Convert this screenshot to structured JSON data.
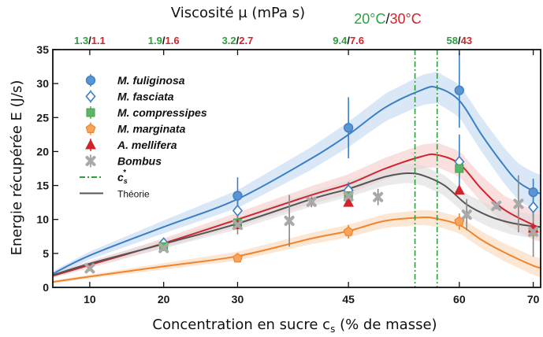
{
  "chart_data": {
    "type": "scatter",
    "title": "",
    "xlabel": "Concentration en sucre c",
    "xlabel_sub": "s",
    "xlabel_unit": " (% de masse)",
    "ylabel": "Energie récupérée E (J/s)",
    "top_axis_label": "Viscosité µ (mPa s)",
    "temperatures": {
      "t20": "20°C",
      "sep": "/",
      "t30": "30°C",
      "color20": "#2e9e3e",
      "color30": "#d0242d"
    },
    "xlim": [
      5,
      71
    ],
    "ylim": [
      0,
      35
    ],
    "x_ticks": [
      10,
      20,
      30,
      45,
      60,
      70
    ],
    "y_ticks": [
      0,
      5,
      10,
      15,
      20,
      25,
      30,
      35
    ],
    "grid": false,
    "legend_position": "top-left",
    "viscosity_ticks": [
      {
        "x": 10,
        "v20": "1.3",
        "v30": "1.1"
      },
      {
        "x": 20,
        "v20": "1.9",
        "v30": "1.6"
      },
      {
        "x": 30,
        "v20": "3.2",
        "v30": "2.7"
      },
      {
        "x": 45,
        "v20": "9.4",
        "v30": "7.6"
      },
      {
        "x": 60,
        "v20": "58",
        "v30": "43"
      }
    ],
    "cs_star_lines": [
      {
        "x": 54,
        "color": "#2e9e3e"
      },
      {
        "x": 57,
        "color": "#2e9e3e"
      }
    ],
    "theory_curves": [
      {
        "name": "",
        "color": "#3a7fc4",
        "band_color": "#b9d3ee",
        "band_halfwidth": [
          0.4,
          2.8
        ],
        "points": [
          [
            5,
            2.0
          ],
          [
            10,
            4.7
          ],
          [
            20,
            8.9
          ],
          [
            30,
            13.0
          ],
          [
            40,
            19.0
          ],
          [
            45,
            22.5
          ],
          [
            50,
            26.5
          ],
          [
            55,
            29.1
          ],
          [
            57,
            29.4
          ],
          [
            60,
            27.5
          ],
          [
            63,
            22.5
          ],
          [
            66,
            18.0
          ],
          [
            68,
            15.5
          ],
          [
            70,
            14.2
          ],
          [
            71,
            13.8
          ]
        ]
      },
      {
        "name": "",
        "color": "#d0242d",
        "band_color": "#f5c5c5",
        "band_halfwidth": [
          0.3,
          2.2
        ],
        "points": [
          [
            5,
            1.7
          ],
          [
            10,
            3.3
          ],
          [
            20,
            6.5
          ],
          [
            30,
            10.0
          ],
          [
            40,
            13.6
          ],
          [
            45,
            15.2
          ],
          [
            50,
            17.5
          ],
          [
            55,
            19.3
          ],
          [
            57,
            19.5
          ],
          [
            60,
            18.2
          ],
          [
            63,
            14.5
          ],
          [
            66,
            11.5
          ],
          [
            70,
            9.2
          ],
          [
            71,
            8.9
          ]
        ]
      },
      {
        "name": "",
        "color": "#555555",
        "band_color": "#d8d8d8",
        "band_halfwidth": [
          0.3,
          1.8
        ],
        "points": [
          [
            5,
            1.8
          ],
          [
            10,
            3.5
          ],
          [
            20,
            6.4
          ],
          [
            30,
            9.4
          ],
          [
            40,
            13.0
          ],
          [
            45,
            14.5
          ],
          [
            50,
            16.3
          ],
          [
            53,
            16.8
          ],
          [
            55,
            16.5
          ],
          [
            58,
            15.0
          ],
          [
            61,
            12.2
          ],
          [
            64,
            10.5
          ],
          [
            67,
            9.5
          ],
          [
            70,
            9.0
          ],
          [
            71,
            8.9
          ]
        ]
      },
      {
        "name": "",
        "color": "#f0842c",
        "band_color": "#f9d4b3",
        "band_halfwidth": [
          0.2,
          1.4
        ],
        "points": [
          [
            5,
            0.8
          ],
          [
            10,
            1.6
          ],
          [
            20,
            3.1
          ],
          [
            30,
            4.6
          ],
          [
            40,
            7.2
          ],
          [
            45,
            8.3
          ],
          [
            50,
            9.8
          ],
          [
            55,
            10.3
          ],
          [
            57,
            10.1
          ],
          [
            60,
            9.2
          ],
          [
            63,
            7.0
          ],
          [
            66,
            5.2
          ],
          [
            70,
            3.2
          ],
          [
            71,
            2.9
          ]
        ]
      }
    ],
    "series": [
      {
        "name": "M. fuliginosa",
        "marker": "circle",
        "color": "#3a7fc4",
        "fill": "#5a94d2",
        "points": [
          {
            "x": 30,
            "y": 13.5,
            "err": 2.7
          },
          {
            "x": 45,
            "y": 23.5,
            "err": 4.5
          },
          {
            "x": 60,
            "y": 29.0,
            "err": 5.5
          },
          {
            "x": 70,
            "y": 14.0,
            "err": 2.0
          }
        ]
      },
      {
        "name": "M. fasciata",
        "marker": "diamond",
        "color": "#3a7fc4",
        "fill": "#ffffff",
        "points": [
          {
            "x": 20,
            "y": 6.5,
            "err": 0.6
          },
          {
            "x": 30,
            "y": 11.3,
            "err": 1.5
          },
          {
            "x": 45,
            "y": 14.3,
            "err": 1.2
          },
          {
            "x": 60,
            "y": 18.5,
            "err": 4.0
          },
          {
            "x": 70,
            "y": 11.8,
            "err": 1.5
          }
        ]
      },
      {
        "name": "M. compressipes",
        "marker": "square",
        "color": "#3fa34d",
        "fill": "#5ab565",
        "points": [
          {
            "x": 20,
            "y": 6.0,
            "err": 0.4
          },
          {
            "x": 30,
            "y": 9.5,
            "err": 0.8
          },
          {
            "x": 45,
            "y": 13.5,
            "err": 0.8
          },
          {
            "x": 60,
            "y": 17.5,
            "err": 1.0
          }
        ]
      },
      {
        "name": "M. marginata",
        "marker": "pentagon",
        "color": "#f0842c",
        "fill": "#f7a45c",
        "points": [
          {
            "x": 30,
            "y": 4.3,
            "err": 0.0
          },
          {
            "x": 45,
            "y": 8.2,
            "err": 1.0
          },
          {
            "x": 60,
            "y": 9.7,
            "err": 1.2
          },
          {
            "x": 70,
            "y": 8.2,
            "err": 1.0
          }
        ]
      },
      {
        "name": "A. mellifera",
        "marker": "triangle",
        "color": "#d0242d",
        "fill": "#d0242d",
        "points": [
          {
            "x": 30,
            "y": 9.2,
            "err": 0.0
          },
          {
            "x": 45,
            "y": 12.5,
            "err": 0.0
          },
          {
            "x": 60,
            "y": 14.3,
            "err": 0.0
          },
          {
            "x": 70,
            "y": 8.7,
            "err": 0.0
          }
        ]
      },
      {
        "name": "Bombus",
        "marker": "cross",
        "color": "#888888",
        "fill": "#a9a9a9",
        "points": [
          {
            "x": 10,
            "y": 2.8,
            "err": 0.4
          },
          {
            "x": 20,
            "y": 5.8,
            "err": 0.4
          },
          {
            "x": 30,
            "y": 9.2,
            "err": 1.4
          },
          {
            "x": 37,
            "y": 9.8,
            "err": 3.8
          },
          {
            "x": 40,
            "y": 12.6,
            "err": 0.8
          },
          {
            "x": 45,
            "y": 13.4,
            "err": 1.2
          },
          {
            "x": 49,
            "y": 13.3,
            "err": 1.2
          },
          {
            "x": 61,
            "y": 10.7,
            "err": 2.3
          },
          {
            "x": 65,
            "y": 12.0,
            "err": 0.5
          },
          {
            "x": 68,
            "y": 12.3,
            "err": 4.2
          },
          {
            "x": 70,
            "y": 8.2,
            "err": 3.7
          }
        ]
      }
    ],
    "legend_extra": [
      {
        "kind": "dashdot",
        "label": "c",
        "sub": "s",
        "sup": "*",
        "color": "#2e9e3e"
      },
      {
        "kind": "line",
        "label": "Théorie",
        "color": "#555555"
      }
    ]
  }
}
